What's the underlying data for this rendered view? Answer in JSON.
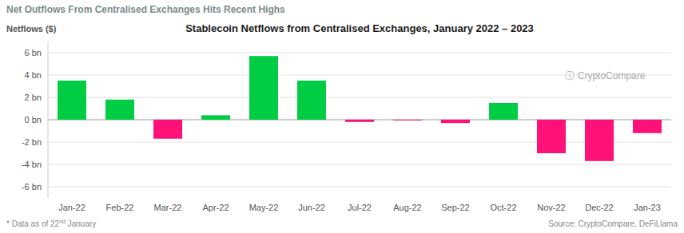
{
  "chart_data": {
    "type": "bar",
    "title": "Stablecoin Netflows from Centralised Exchanges, January 2022 – 2023",
    "subtitle": "Net Outflows From Centralised Exchanges Hits Recent Highs",
    "ylabel": "Netflows ($)",
    "categories": [
      "Jan-22",
      "Feb-22",
      "Mar-22",
      "Apr-22",
      "May-22",
      "Jun-22",
      "Jul-22",
      "Aug-22",
      "Sep-22",
      "Oct-22",
      "Nov-22",
      "Dec-22",
      "Jan-23"
    ],
    "values": [
      3.5,
      1.8,
      -1.7,
      0.4,
      5.7,
      3.5,
      -0.2,
      -0.07,
      -0.3,
      1.5,
      -3.0,
      -3.7,
      -1.2
    ],
    "colors": [
      "#00CC44",
      "#00CC44",
      "#FF1177",
      "#00CC44",
      "#00CC44",
      "#00CC44",
      "#FF1177",
      "#FF1177",
      "#FF1177",
      "#00CC44",
      "#FF1177",
      "#FF1177",
      "#FF1177"
    ],
    "ylim": [
      -7,
      7
    ],
    "yticks": [
      {
        "value": -6,
        "label": "-6 bn"
      },
      {
        "value": -4,
        "label": "-4 bn"
      },
      {
        "value": -2,
        "label": "-2 bn"
      },
      {
        "value": 0,
        "label": "0 bn"
      },
      {
        "value": 2,
        "label": "2 bn"
      },
      {
        "value": 4,
        "label": "4 bn"
      },
      {
        "value": 6,
        "label": "6 bn"
      }
    ],
    "grid": true,
    "annotations": [
      "ⓘ CryptoCompare",
      "* Data as of 22",
      "nd",
      " January",
      "Source: CryptoCompare, DeFiLlama"
    ]
  }
}
